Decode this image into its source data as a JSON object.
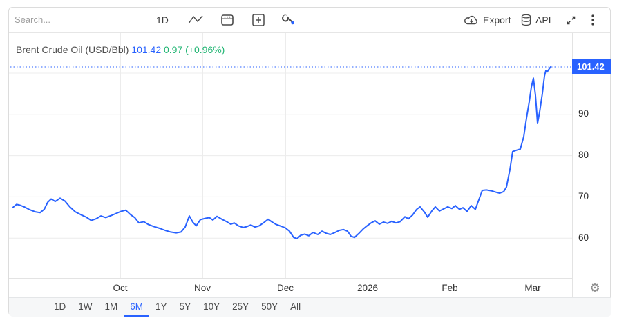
{
  "toolbar": {
    "search_placeholder": "Search...",
    "interval_label": "1D",
    "export_label": "Export",
    "api_label": "API"
  },
  "title": {
    "instrument": "Brent Crude Oil (USD/Bbl)",
    "last_price": "101.42",
    "change": "0.97 (+0.96%)"
  },
  "price_badge": "101.42",
  "colors": {
    "line": "#2962ff",
    "badge": "#2962ff",
    "positive": "#21b573",
    "grid": "#ececec",
    "axis_text": "#262626"
  },
  "range_buttons": [
    "1D",
    "1W",
    "1M",
    "6M",
    "1Y",
    "5Y",
    "10Y",
    "25Y",
    "50Y",
    "All"
  ],
  "active_range": "6M",
  "chart_data": {
    "type": "line",
    "title": "Brent Crude Oil (USD/Bbl)",
    "series_name": "Brent Crude Oil",
    "unit": "USD/Bbl",
    "last_value": 101.42,
    "ylim": [
      50.1,
      109.6
    ],
    "yticks": [
      60,
      70,
      80,
      90
    ],
    "ygrid": [
      60,
      70,
      80,
      90,
      100
    ],
    "grid": true,
    "legend_position": "none",
    "x_axis_labels": [
      {
        "label": "Oct",
        "px": 173
      },
      {
        "label": "Nov",
        "px": 292
      },
      {
        "label": "Dec",
        "px": 412
      },
      {
        "label": "2026",
        "px": 531
      },
      {
        "label": "Feb",
        "px": 650
      },
      {
        "label": "Mar",
        "px": 770
      }
    ],
    "points": [
      [
        18,
        67.4
      ],
      [
        23,
        68.1
      ],
      [
        28,
        67.9
      ],
      [
        34,
        67.5
      ],
      [
        42,
        66.8
      ],
      [
        50,
        66.3
      ],
      [
        57,
        66.1
      ],
      [
        63,
        66.9
      ],
      [
        68,
        68.6
      ],
      [
        73,
        69.4
      ],
      [
        79,
        68.8
      ],
      [
        86,
        69.6
      ],
      [
        93,
        68.9
      ],
      [
        100,
        67.5
      ],
      [
        108,
        66.3
      ],
      [
        116,
        65.6
      ],
      [
        124,
        65.0
      ],
      [
        131,
        64.2
      ],
      [
        138,
        64.6
      ],
      [
        145,
        65.3
      ],
      [
        152,
        64.9
      ],
      [
        160,
        65.4
      ],
      [
        167,
        65.9
      ],
      [
        174,
        66.4
      ],
      [
        181,
        66.7
      ],
      [
        188,
        65.6
      ],
      [
        194,
        64.9
      ],
      [
        200,
        63.6
      ],
      [
        207,
        63.9
      ],
      [
        214,
        63.2
      ],
      [
        222,
        62.7
      ],
      [
        230,
        62.3
      ],
      [
        238,
        61.8
      ],
      [
        246,
        61.4
      ],
      [
        254,
        61.2
      ],
      [
        261,
        61.4
      ],
      [
        267,
        62.6
      ],
      [
        273,
        65.3
      ],
      [
        278,
        63.8
      ],
      [
        283,
        62.9
      ],
      [
        289,
        64.4
      ],
      [
        296,
        64.7
      ],
      [
        302,
        64.9
      ],
      [
        307,
        64.3
      ],
      [
        313,
        65.2
      ],
      [
        320,
        64.5
      ],
      [
        327,
        63.9
      ],
      [
        333,
        63.3
      ],
      [
        338,
        63.6
      ],
      [
        344,
        62.9
      ],
      [
        351,
        62.5
      ],
      [
        356,
        62.7
      ],
      [
        362,
        63.1
      ],
      [
        368,
        62.6
      ],
      [
        374,
        62.9
      ],
      [
        381,
        63.7
      ],
      [
        387,
        64.5
      ],
      [
        393,
        63.8
      ],
      [
        399,
        63.2
      ],
      [
        406,
        62.8
      ],
      [
        412,
        62.4
      ],
      [
        418,
        61.6
      ],
      [
        424,
        60.1
      ],
      [
        429,
        59.8
      ],
      [
        434,
        60.6
      ],
      [
        440,
        60.9
      ],
      [
        446,
        60.5
      ],
      [
        452,
        61.3
      ],
      [
        459,
        60.8
      ],
      [
        465,
        61.6
      ],
      [
        471,
        61.1
      ],
      [
        477,
        60.8
      ],
      [
        484,
        61.3
      ],
      [
        490,
        61.8
      ],
      [
        496,
        62.0
      ],
      [
        502,
        61.6
      ],
      [
        507,
        60.4
      ],
      [
        512,
        60.1
      ],
      [
        518,
        61.0
      ],
      [
        525,
        62.2
      ],
      [
        531,
        63.0
      ],
      [
        537,
        63.7
      ],
      [
        542,
        64.1
      ],
      [
        548,
        63.3
      ],
      [
        554,
        63.8
      ],
      [
        560,
        63.5
      ],
      [
        566,
        64.0
      ],
      [
        572,
        63.6
      ],
      [
        578,
        63.9
      ],
      [
        585,
        65.1
      ],
      [
        590,
        64.6
      ],
      [
        596,
        65.5
      ],
      [
        602,
        66.9
      ],
      [
        607,
        67.5
      ],
      [
        613,
        66.3
      ],
      [
        618,
        65.0
      ],
      [
        624,
        66.5
      ],
      [
        629,
        67.5
      ],
      [
        635,
        66.5
      ],
      [
        641,
        67.0
      ],
      [
        647,
        67.5
      ],
      [
        653,
        67.1
      ],
      [
        658,
        67.8
      ],
      [
        664,
        66.9
      ],
      [
        669,
        67.3
      ],
      [
        675,
        66.4
      ],
      [
        681,
        67.8
      ],
      [
        687,
        66.9
      ],
      [
        692,
        69.2
      ],
      [
        697,
        71.5
      ],
      [
        703,
        71.6
      ],
      [
        710,
        71.4
      ],
      [
        716,
        71.1
      ],
      [
        722,
        70.8
      ],
      [
        728,
        71.2
      ],
      [
        732,
        72.3
      ],
      [
        737,
        76.5
      ],
      [
        741,
        80.9
      ],
      [
        746,
        81.2
      ],
      [
        752,
        81.5
      ],
      [
        757,
        84.5
      ],
      [
        761,
        89.0
      ],
      [
        765,
        93.0
      ],
      [
        768,
        96.5
      ],
      [
        771,
        98.7
      ],
      [
        774,
        94.5
      ],
      [
        777,
        87.7
      ],
      [
        780,
        90.5
      ],
      [
        784,
        95.0
      ],
      [
        787,
        99.2
      ],
      [
        789,
        100.5
      ],
      [
        791,
        100.2
      ],
      [
        794,
        101.0
      ],
      [
        796,
        101.42
      ]
    ]
  }
}
